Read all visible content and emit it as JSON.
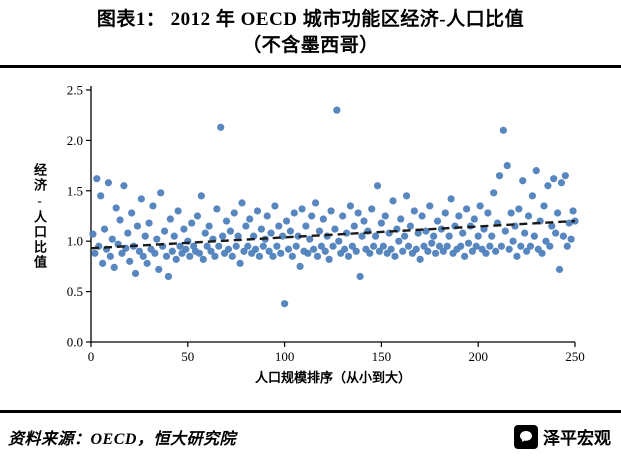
{
  "title": {
    "line1": "图表1：  2012 年 OECD 城市功能区经济-人口比值",
    "line2": "（不含墨西哥）"
  },
  "footer": {
    "source": "资料来源：OECD，恒大研究院",
    "logo_text": "泽平宏观"
  },
  "chart_data": {
    "type": "scatter",
    "title": "2012 年 OECD 城市功能区经济-人口比值（不含墨西哥）",
    "xlabel": "人口规模排序（从小到大）",
    "ylabel": "经济-人口比值",
    "xlim": [
      0,
      250
    ],
    "ylim": [
      0,
      2.5
    ],
    "x_ticks": [
      0,
      50,
      100,
      150,
      200,
      250
    ],
    "y_ticks": [
      0.0,
      0.5,
      1.0,
      1.5,
      2.0,
      2.5
    ],
    "grid": false,
    "legend": "none",
    "point_color": "#4f81bd",
    "trend_line": {
      "style": "dashed",
      "color": "#1a1a1a",
      "x": [
        0,
        250
      ],
      "y": [
        0.93,
        1.2
      ]
    },
    "points": [
      [
        1,
        1.07
      ],
      [
        2,
        0.88
      ],
      [
        3,
        1.62
      ],
      [
        4,
        0.95
      ],
      [
        5,
        1.45
      ],
      [
        6,
        0.78
      ],
      [
        7,
        1.12
      ],
      [
        8,
        0.92
      ],
      [
        9,
        1.58
      ],
      [
        10,
        0.85
      ],
      [
        11,
        1.02
      ],
      [
        12,
        0.74
      ],
      [
        13,
        1.33
      ],
      [
        14,
        0.97
      ],
      [
        15,
        1.21
      ],
      [
        16,
        0.88
      ],
      [
        17,
        1.55
      ],
      [
        18,
        0.93
      ],
      [
        19,
        1.08
      ],
      [
        20,
        0.8
      ],
      [
        21,
        1.28
      ],
      [
        22,
        0.95
      ],
      [
        23,
        0.68
      ],
      [
        24,
        1.15
      ],
      [
        25,
        0.9
      ],
      [
        26,
        1.42
      ],
      [
        27,
        0.85
      ],
      [
        28,
        1.05
      ],
      [
        29,
        0.78
      ],
      [
        30,
        1.18
      ],
      [
        31,
        0.92
      ],
      [
        32,
        1.35
      ],
      [
        33,
        0.88
      ],
      [
        34,
        1.02
      ],
      [
        35,
        0.72
      ],
      [
        36,
        1.48
      ],
      [
        37,
        0.95
      ],
      [
        38,
        1.1
      ],
      [
        39,
        0.85
      ],
      [
        40,
        0.65
      ],
      [
        41,
        1.22
      ],
      [
        42,
        0.9
      ],
      [
        43,
        1.05
      ],
      [
        44,
        0.82
      ],
      [
        45,
        1.3
      ],
      [
        46,
        0.95
      ],
      [
        47,
        0.88
      ],
      [
        48,
        1.12
      ],
      [
        49,
        0.92
      ],
      [
        50,
        1.0
      ],
      [
        51,
        0.85
      ],
      [
        52,
        1.18
      ],
      [
        53,
        0.95
      ],
      [
        54,
        0.9
      ],
      [
        55,
        1.25
      ],
      [
        56,
        0.88
      ],
      [
        57,
        1.45
      ],
      [
        58,
        0.82
      ],
      [
        59,
        1.08
      ],
      [
        60,
        0.95
      ],
      [
        61,
        1.15
      ],
      [
        62,
        0.9
      ],
      [
        63,
        1.02
      ],
      [
        64,
        0.85
      ],
      [
        65,
        1.32
      ],
      [
        66,
        0.95
      ],
      [
        67,
        2.13
      ],
      [
        68,
        1.05
      ],
      [
        69,
        0.88
      ],
      [
        70,
        1.2
      ],
      [
        71,
        0.92
      ],
      [
        72,
        1.1
      ],
      [
        73,
        0.85
      ],
      [
        74,
        1.28
      ],
      [
        75,
        0.95
      ],
      [
        76,
        1.05
      ],
      [
        77,
        0.78
      ],
      [
        78,
        1.38
      ],
      [
        79,
        0.9
      ],
      [
        80,
        1.15
      ],
      [
        81,
        0.95
      ],
      [
        82,
        1.22
      ],
      [
        83,
        0.88
      ],
      [
        84,
        1.05
      ],
      [
        85,
        0.92
      ],
      [
        86,
        1.3
      ],
      [
        87,
        0.85
      ],
      [
        88,
        1.12
      ],
      [
        89,
        0.95
      ],
      [
        90,
        1.02
      ],
      [
        91,
        1.25
      ],
      [
        92,
        0.9
      ],
      [
        93,
        1.08
      ],
      [
        94,
        0.85
      ],
      [
        95,
        1.35
      ],
      [
        96,
        0.95
      ],
      [
        97,
        1.15
      ],
      [
        98,
        0.88
      ],
      [
        99,
        1.05
      ],
      [
        100,
        0.38
      ],
      [
        101,
        1.2
      ],
      [
        102,
        0.92
      ],
      [
        103,
        1.1
      ],
      [
        104,
        0.85
      ],
      [
        105,
        1.28
      ],
      [
        106,
        0.95
      ],
      [
        107,
        1.05
      ],
      [
        108,
        0.75
      ],
      [
        109,
        1.32
      ],
      [
        110,
        0.9
      ],
      [
        111,
        1.15
      ],
      [
        112,
        0.88
      ],
      [
        113,
        1.02
      ],
      [
        114,
        1.25
      ],
      [
        115,
        0.92
      ],
      [
        116,
        1.38
      ],
      [
        117,
        0.85
      ],
      [
        118,
        1.1
      ],
      [
        119,
        0.95
      ],
      [
        120,
        1.22
      ],
      [
        121,
        0.9
      ],
      [
        122,
        1.05
      ],
      [
        123,
        0.82
      ],
      [
        124,
        1.3
      ],
      [
        125,
        0.95
      ],
      [
        126,
        1.12
      ],
      [
        127,
        2.3
      ],
      [
        128,
        1.0
      ],
      [
        129,
        0.88
      ],
      [
        130,
        1.25
      ],
      [
        131,
        0.92
      ],
      [
        132,
        1.08
      ],
      [
        133,
        0.85
      ],
      [
        134,
        1.35
      ],
      [
        135,
        0.95
      ],
      [
        136,
        1.15
      ],
      [
        137,
        0.9
      ],
      [
        138,
        1.28
      ],
      [
        139,
        0.65
      ],
      [
        140,
        1.05
      ],
      [
        141,
        1.2
      ],
      [
        142,
        0.92
      ],
      [
        143,
        1.1
      ],
      [
        144,
        0.88
      ],
      [
        145,
        1.32
      ],
      [
        146,
        0.95
      ],
      [
        147,
        1.05
      ],
      [
        148,
        1.55
      ],
      [
        149,
        0.9
      ],
      [
        150,
        1.18
      ],
      [
        151,
        0.95
      ],
      [
        152,
        1.25
      ],
      [
        153,
        0.88
      ],
      [
        154,
        1.08
      ],
      [
        155,
        0.92
      ],
      [
        156,
        1.4
      ],
      [
        157,
        0.85
      ],
      [
        158,
        1.12
      ],
      [
        159,
        1.0
      ],
      [
        160,
        1.22
      ],
      [
        161,
        0.9
      ],
      [
        162,
        1.05
      ],
      [
        163,
        1.45
      ],
      [
        164,
        0.95
      ],
      [
        165,
        1.15
      ],
      [
        166,
        0.88
      ],
      [
        167,
        1.3
      ],
      [
        168,
        0.92
      ],
      [
        169,
        1.08
      ],
      [
        170,
        0.82
      ],
      [
        171,
        1.25
      ],
      [
        172,
        0.95
      ],
      [
        173,
        1.1
      ],
      [
        174,
        0.9
      ],
      [
        175,
        1.35
      ],
      [
        176,
        0.98
      ],
      [
        177,
        1.05
      ],
      [
        178,
        0.88
      ],
      [
        179,
        1.2
      ],
      [
        180,
        0.95
      ],
      [
        181,
        1.12
      ],
      [
        182,
        0.9
      ],
      [
        183,
        1.28
      ],
      [
        184,
        0.95
      ],
      [
        185,
        1.05
      ],
      [
        186,
        1.42
      ],
      [
        187,
        0.88
      ],
      [
        188,
        1.15
      ],
      [
        189,
        0.92
      ],
      [
        190,
        1.25
      ],
      [
        191,
        0.95
      ],
      [
        192,
        1.08
      ],
      [
        193,
        0.85
      ],
      [
        194,
        1.32
      ],
      [
        195,
        0.98
      ],
      [
        196,
        1.15
      ],
      [
        197,
        0.9
      ],
      [
        198,
        1.22
      ],
      [
        199,
        0.95
      ],
      [
        200,
        1.05
      ],
      [
        201,
        1.35
      ],
      [
        202,
        0.92
      ],
      [
        203,
        1.12
      ],
      [
        204,
        0.88
      ],
      [
        205,
        1.28
      ],
      [
        206,
        0.95
      ],
      [
        207,
        1.05
      ],
      [
        208,
        1.48
      ],
      [
        209,
        0.9
      ],
      [
        210,
        1.18
      ],
      [
        211,
        1.65
      ],
      [
        212,
        0.95
      ],
      [
        213,
        2.1
      ],
      [
        214,
        1.1
      ],
      [
        215,
        1.75
      ],
      [
        216,
        0.92
      ],
      [
        217,
        1.28
      ],
      [
        218,
        1.0
      ],
      [
        219,
        1.15
      ],
      [
        220,
        0.85
      ],
      [
        221,
        1.32
      ],
      [
        222,
        0.95
      ],
      [
        223,
        1.6
      ],
      [
        224,
        1.08
      ],
      [
        225,
        0.9
      ],
      [
        226,
        1.25
      ],
      [
        227,
        0.95
      ],
      [
        228,
        1.45
      ],
      [
        229,
        1.05
      ],
      [
        230,
        1.7
      ],
      [
        231,
        0.92
      ],
      [
        232,
        1.2
      ],
      [
        233,
        0.88
      ],
      [
        234,
        1.35
      ],
      [
        235,
        1.0
      ],
      [
        236,
        1.55
      ],
      [
        237,
        0.95
      ],
      [
        238,
        1.15
      ],
      [
        239,
        1.62
      ],
      [
        240,
        1.08
      ],
      [
        241,
        1.28
      ],
      [
        242,
        0.72
      ],
      [
        243,
        1.58
      ],
      [
        244,
        1.05
      ],
      [
        245,
        1.65
      ],
      [
        246,
        0.95
      ],
      [
        247,
        1.18
      ],
      [
        248,
        1.02
      ],
      [
        249,
        1.3
      ],
      [
        250,
        1.2
      ]
    ]
  }
}
